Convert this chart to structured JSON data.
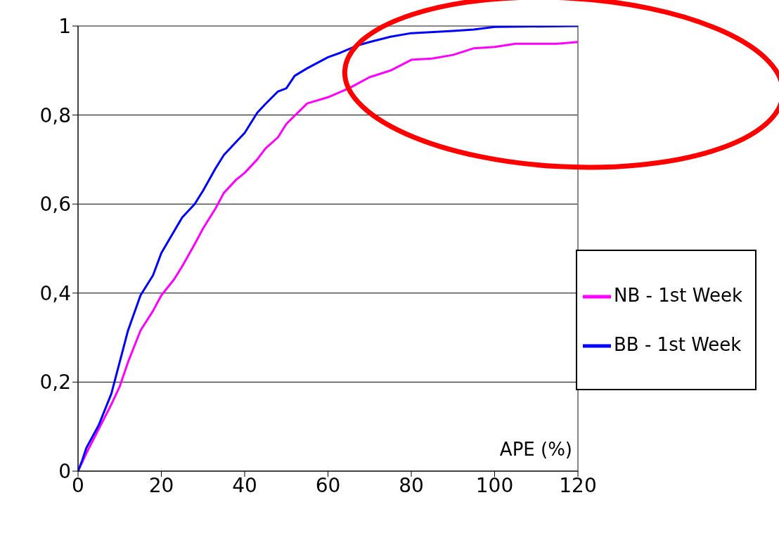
{
  "chart_data": {
    "type": "line",
    "xlabel": "APE (%)",
    "xlim": [
      0,
      120
    ],
    "xticks": [
      0,
      20,
      40,
      60,
      80,
      100,
      120
    ],
    "ylim": [
      0,
      1
    ],
    "yticks": [
      0,
      {
        "value": 0.2,
        "label": "0,2"
      },
      {
        "value": 0.4,
        "label": "0,4"
      },
      {
        "value": 0.6,
        "label": "0,6"
      },
      {
        "value": 0.8,
        "label": "0,8"
      },
      1
    ],
    "grid": "y",
    "legend": "right",
    "marker": "none",
    "line_style": "solid",
    "series": [
      {
        "name": "NB - 1st Week",
        "color": "#ff00ff",
        "x": [
          0,
          2,
          5,
          8,
          10,
          12,
          15,
          18,
          20,
          23,
          25,
          28,
          30,
          33,
          35,
          38,
          40,
          43,
          45,
          48,
          50,
          55,
          60,
          65,
          70,
          75,
          80,
          85,
          90,
          95,
          100,
          105,
          115,
          120
        ],
        "values": [
          0,
          0.04,
          0.095,
          0.15,
          0.19,
          0.245,
          0.316,
          0.36,
          0.395,
          0.43,
          0.46,
          0.51,
          0.545,
          0.59,
          0.625,
          0.655,
          0.67,
          0.7,
          0.725,
          0.75,
          0.78,
          0.826,
          0.84,
          0.86,
          0.885,
          0.9,
          0.924,
          0.927,
          0.935,
          0.95,
          0.953,
          0.96,
          0.96,
          0.964
        ]
      },
      {
        "name": "BB - 1st Week",
        "color": "#0000ff",
        "x": [
          0,
          1,
          2,
          5,
          8,
          10,
          12,
          15,
          18,
          20,
          25,
          28,
          30,
          33,
          35,
          38,
          40,
          43,
          45,
          48,
          50,
          52,
          55,
          60,
          63,
          67,
          70,
          75,
          80,
          90,
          95,
          100,
          120
        ],
        "values": [
          0,
          0.024,
          0.052,
          0.104,
          0.174,
          0.245,
          0.316,
          0.395,
          0.44,
          0.49,
          0.57,
          0.6,
          0.63,
          0.68,
          0.71,
          0.74,
          0.76,
          0.805,
          0.825,
          0.853,
          0.86,
          0.888,
          0.905,
          0.93,
          0.94,
          0.956,
          0.964,
          0.976,
          0.984,
          0.989,
          0.992,
          0.998,
          1
        ]
      }
    ]
  }
}
